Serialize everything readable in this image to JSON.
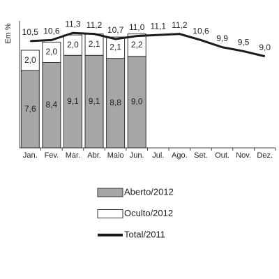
{
  "chart_data": {
    "type": "bar",
    "y_label": "Em %",
    "categories": [
      "Jan.",
      "Fev.",
      "Mar.",
      "Abr.",
      "Maio",
      "Jun.",
      "Jul.",
      "Ago.",
      "Set.",
      "Out.",
      "Nov.",
      "Dez."
    ],
    "ylim": [
      0,
      12
    ],
    "series": [
      {
        "name": "Aberto/2012",
        "type": "bar",
        "color": "#a6a6a6",
        "values": [
          7.6,
          8.4,
          9.1,
          9.1,
          8.8,
          9.0,
          null,
          null,
          null,
          null,
          null,
          null
        ],
        "value_labels": [
          "7,6",
          "8,4",
          "9,1",
          "9,1",
          "8,8",
          "9,0",
          null,
          null,
          null,
          null,
          null,
          null
        ]
      },
      {
        "name": "Oculto/2012",
        "type": "bar",
        "color": "#ffffff",
        "values": [
          2.0,
          2.0,
          2.0,
          2.1,
          2.1,
          2.2,
          null,
          null,
          null,
          null,
          null,
          null
        ],
        "value_labels": [
          "2,0",
          "2,0",
          "2,0",
          "2,1",
          "2,1",
          "2,2",
          null,
          null,
          null,
          null,
          null,
          null
        ]
      },
      {
        "name": "Total/2011",
        "type": "line",
        "color": "#1a1a1a",
        "values": [
          10.5,
          10.6,
          11.3,
          11.2,
          10.7,
          11.0,
          11.1,
          11.2,
          10.6,
          9.9,
          9.5,
          9.0
        ],
        "value_labels": [
          "10,5",
          "10,6",
          "11,3",
          "11,2",
          "10,7",
          "11,0",
          "11,1",
          "11,2",
          "10,6",
          "9,9",
          "9,5",
          "9,0"
        ]
      }
    ]
  }
}
